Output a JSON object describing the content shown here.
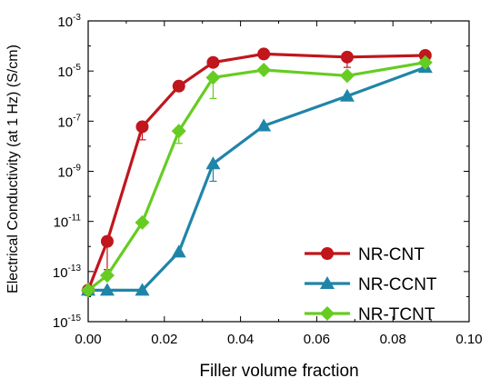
{
  "chart_data": {
    "type": "line",
    "xlabel": "Filler volume fraction",
    "ylabel": "Electrical Conductivity (at 1 Hz) (S/cm)",
    "xlim": [
      0,
      0.1
    ],
    "ylim": [
      1e-15,
      0.001
    ],
    "yscale": "log",
    "legend_position": "bottom-right",
    "x_ticks": [
      {
        "value": 0,
        "label": "0.00"
      },
      {
        "value": 0.02,
        "label": "0.02"
      },
      {
        "value": 0.04,
        "label": "0.04"
      },
      {
        "value": 0.06,
        "label": "0.06"
      },
      {
        "value": 0.08,
        "label": "0.08"
      },
      {
        "value": 0.1,
        "label": "0.10"
      }
    ],
    "y_ticks": [
      {
        "value": 1e-15,
        "base": "10",
        "exp": "-15"
      },
      {
        "value": 1e-13,
        "base": "10",
        "exp": "-13"
      },
      {
        "value": 1e-11,
        "base": "10",
        "exp": "-11"
      },
      {
        "value": 1e-09,
        "base": "10",
        "exp": "-9"
      },
      {
        "value": 1e-07,
        "base": "10",
        "exp": "-7"
      },
      {
        "value": 1e-05,
        "base": "10",
        "exp": "-5"
      },
      {
        "value": 0.001,
        "base": "10",
        "exp": "-3"
      }
    ],
    "series": [
      {
        "name": "NR-CNT",
        "color": "#c0161c",
        "marker": "circle",
        "points": [
          {
            "x": 0.0,
            "y": 1.8e-14
          },
          {
            "x": 0.005,
            "y": 1.6e-12,
            "err_low": 1.2e-13
          },
          {
            "x": 0.0142,
            "y": 6e-08,
            "err_low": 1.8e-08
          },
          {
            "x": 0.0238,
            "y": 2.5e-06
          },
          {
            "x": 0.0328,
            "y": 2.2e-05
          },
          {
            "x": 0.0461,
            "y": 4.8e-05
          },
          {
            "x": 0.068,
            "y": 3.6e-05,
            "err_low": 1.4e-05
          },
          {
            "x": 0.0885,
            "y": 4.2e-05
          }
        ]
      },
      {
        "name": "NR-CCNT",
        "color": "#1f85a8",
        "marker": "triangle",
        "points": [
          {
            "x": 0.0,
            "y": 1.8e-14
          },
          {
            "x": 0.005,
            "y": 1.8e-14
          },
          {
            "x": 0.0142,
            "y": 1.8e-14
          },
          {
            "x": 0.0238,
            "y": 6e-13
          },
          {
            "x": 0.0328,
            "y": 2e-09,
            "err_low": 4e-10
          },
          {
            "x": 0.0461,
            "y": 6.5e-08
          },
          {
            "x": 0.068,
            "y": 1e-06
          },
          {
            "x": 0.0885,
            "y": 1.4e-05
          }
        ]
      },
      {
        "name": "NR-TCNT",
        "color": "#66cc22",
        "marker": "diamond",
        "points": [
          {
            "x": 0.0,
            "y": 1.8e-14
          },
          {
            "x": 0.005,
            "y": 7e-14
          },
          {
            "x": 0.0142,
            "y": 9e-12
          },
          {
            "x": 0.0238,
            "y": 4e-08,
            "err_low": 1.3e-08
          },
          {
            "x": 0.0328,
            "y": 5.5e-06,
            "err_low": 8e-07
          },
          {
            "x": 0.0461,
            "y": 1.1e-05
          },
          {
            "x": 0.068,
            "y": 6.5e-06
          },
          {
            "x": 0.0885,
            "y": 2.2e-05
          }
        ]
      }
    ]
  }
}
